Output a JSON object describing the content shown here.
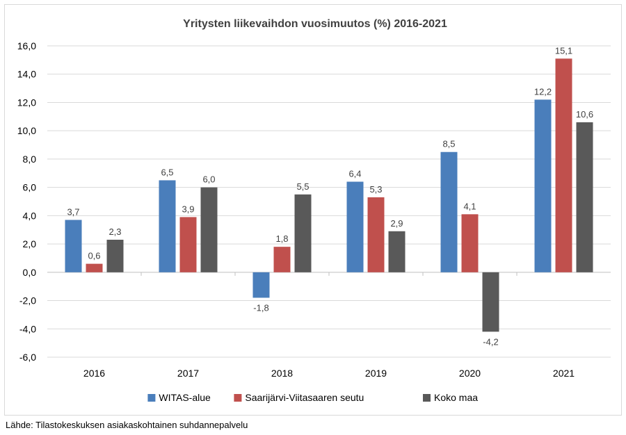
{
  "chart_data": {
    "type": "bar",
    "title": "Yritysten liikevaihdon vuosimuutos (%) 2016-2021",
    "categories": [
      "2016",
      "2017",
      "2018",
      "2019",
      "2020",
      "2021"
    ],
    "series": [
      {
        "name": "WITAS-alue",
        "color": "#4a7ebb",
        "values": [
          3.7,
          6.5,
          -1.8,
          6.4,
          8.5,
          12.2
        ],
        "labels": [
          "3,7",
          "6,5",
          "-1,8",
          "6,4",
          "8,5",
          "12,2"
        ]
      },
      {
        "name": "Saarijärvi-Viitasaaren seutu",
        "color": "#c0504d",
        "values": [
          0.6,
          3.9,
          1.8,
          5.3,
          4.1,
          15.1
        ],
        "labels": [
          "0,6",
          "3,9",
          "1,8",
          "5,3",
          "4,1",
          "15,1"
        ]
      },
      {
        "name": "Koko maa",
        "color": "#595959",
        "values": [
          2.3,
          6.0,
          5.5,
          2.9,
          -4.2,
          10.6
        ],
        "labels": [
          "2,3",
          "6,0",
          "5,5",
          "2,9",
          "-4,2",
          "10,6"
        ]
      }
    ],
    "ylim": [
      -6,
      16
    ],
    "yticks": [
      16,
      14,
      12,
      10,
      8,
      6,
      4,
      2,
      0,
      -2,
      -4,
      -6
    ],
    "ytick_labels": [
      "16,0",
      "14,0",
      "12,0",
      "10,0",
      "8,0",
      "6,0",
      "4,0",
      "2,0",
      "0,0",
      "-2,0",
      "-4,0",
      "-6,0"
    ],
    "grid": true,
    "legend_position": "bottom"
  },
  "source": "Lähde: Tilastokeskuksen asiakaskohtainen suhdannepalvelu"
}
